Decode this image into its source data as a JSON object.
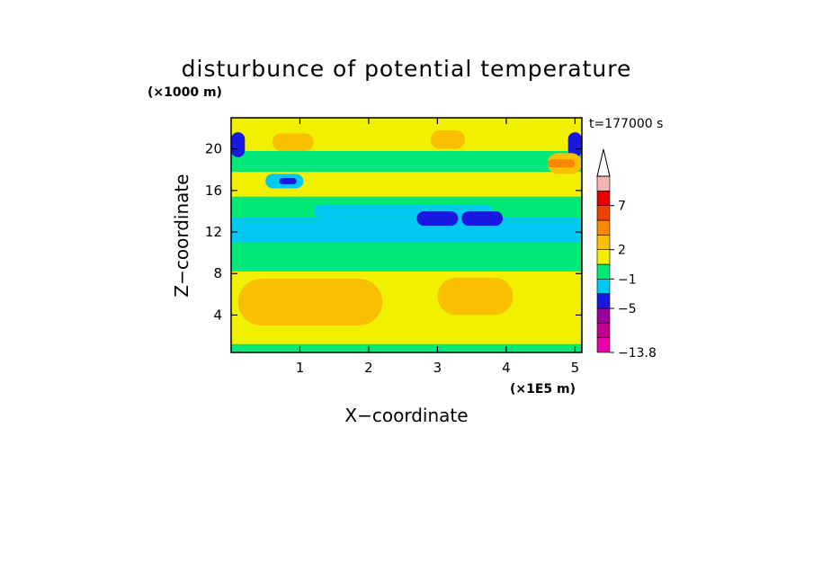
{
  "chart_data": {
    "type": "heatmap",
    "title": "disturbunce of potential temperature",
    "time_label": "t=177000 s",
    "xlabel": "X−coordinate",
    "ylabel": "Z−coordinate",
    "x_unit": "(×1E5 m)",
    "y_unit": "(×1000 m)",
    "xlim": [
      0,
      5.1
    ],
    "ylim": [
      0.4,
      23
    ],
    "x_ticks": [
      1,
      2,
      3,
      4,
      5
    ],
    "y_ticks": [
      4,
      8,
      12,
      16,
      20
    ],
    "colorbar": {
      "extend": "max",
      "colors": [
        "#e800a8",
        "#c0008c",
        "#9c009c",
        "#1818e0",
        "#00c8f0",
        "#00e878",
        "#f0f000",
        "#f8c000",
        "#f88800",
        "#f04000",
        "#e80000",
        "#f8b4b4"
      ],
      "tick_labels": [
        {
          "value": -13.8,
          "label": "−13.8",
          "level": 0
        },
        {
          "value": -5,
          "label": "−5",
          "level": 3
        },
        {
          "value": -1,
          "label": "−1",
          "level": 5
        },
        {
          "value": 2,
          "label": "2",
          "level": 7
        },
        {
          "value": 7,
          "label": "7",
          "level": 10
        }
      ]
    },
    "field": [
      {
        "x": [
          0,
          5.1
        ],
        "z": [
          0.4,
          23
        ],
        "level": 6
      },
      {
        "x": [
          0,
          5.1
        ],
        "z": [
          0.4,
          1.2
        ],
        "level": 5
      },
      {
        "x": [
          0,
          5.1
        ],
        "z": [
          8.2,
          11.0
        ],
        "level": 5
      },
      {
        "x": [
          0,
          5.1
        ],
        "z": [
          11.0,
          13.4
        ],
        "level": 4
      },
      {
        "x": [
          0,
          5.1
        ],
        "z": [
          13.4,
          15.4
        ],
        "level": 5
      },
      {
        "x": [
          0,
          5.1
        ],
        "z": [
          17.8,
          19.8
        ],
        "level": 5
      },
      {
        "x": [
          1.2,
          3.8
        ],
        "z": [
          13.4,
          14.6
        ],
        "level": 4
      },
      {
        "x": [
          2.7,
          3.3
        ],
        "z": [
          12.6,
          14.0
        ],
        "level": 3
      },
      {
        "x": [
          3.35,
          3.95
        ],
        "z": [
          12.6,
          14.0
        ],
        "level": 3
      },
      {
        "x": [
          0.5,
          1.05
        ],
        "z": [
          16.2,
          17.6
        ],
        "level": 4
      },
      {
        "x": [
          0.7,
          0.95
        ],
        "z": [
          16.6,
          17.2
        ],
        "level": 3
      },
      {
        "x": [
          0,
          0.2
        ],
        "z": [
          19.2,
          21.6
        ],
        "level": 3
      },
      {
        "x": [
          4.9,
          5.1
        ],
        "z": [
          19.2,
          21.6
        ],
        "level": 3
      },
      {
        "x": [
          0.6,
          1.2
        ],
        "z": [
          19.8,
          21.5
        ],
        "level": 7
      },
      {
        "x": [
          2.9,
          3.4
        ],
        "z": [
          20.0,
          21.8
        ],
        "level": 7
      },
      {
        "x": [
          0.1,
          2.2
        ],
        "z": [
          3.0,
          7.5
        ],
        "level": 7
      },
      {
        "x": [
          3.0,
          4.1
        ],
        "z": [
          4.0,
          7.6
        ],
        "level": 7
      },
      {
        "x": [
          4.6,
          5.1
        ],
        "z": [
          17.6,
          19.6
        ],
        "level": 7
      },
      {
        "x": [
          4.6,
          5.0
        ],
        "z": [
          18.2,
          19.0
        ],
        "level": 8
      }
    ]
  }
}
